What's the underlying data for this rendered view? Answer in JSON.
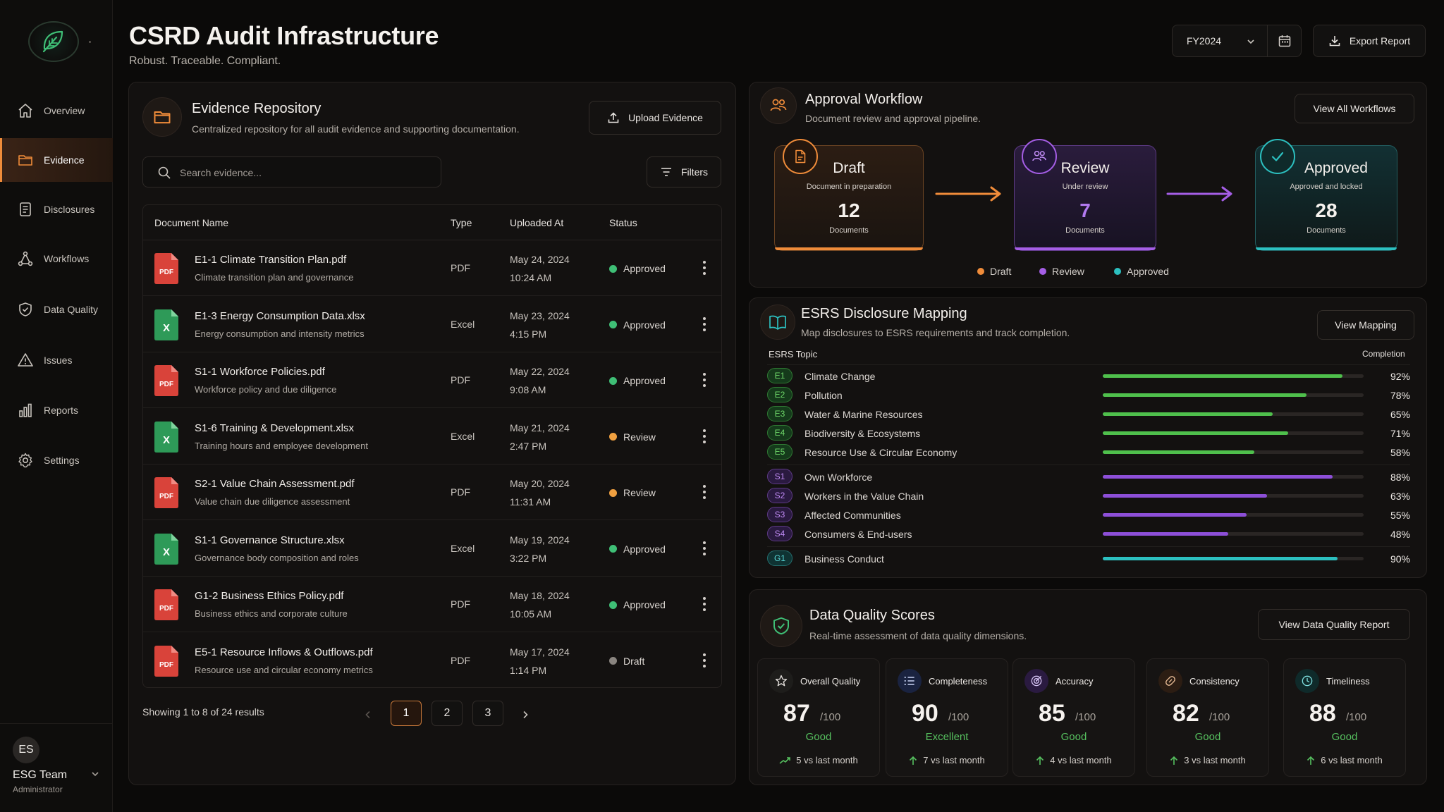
{
  "app": {
    "title": "CSRD Audit Infrastructure",
    "subtitle": "Robust. Traceable. Compliant.",
    "fiscal_year": "FY2024",
    "export_label": "Export Report"
  },
  "sidebar": {
    "items": [
      {
        "label": "Overview",
        "icon": "home-icon"
      },
      {
        "label": "Evidence",
        "icon": "folder-icon",
        "active": true
      },
      {
        "label": "Disclosures",
        "icon": "document-icon"
      },
      {
        "label": "Workflows",
        "icon": "workflow-icon"
      },
      {
        "label": "Data Quality",
        "icon": "shield-check-icon"
      },
      {
        "label": "Issues",
        "icon": "warning-icon"
      },
      {
        "label": "Reports",
        "icon": "bar-chart-icon"
      },
      {
        "label": "Settings",
        "icon": "gear-icon"
      }
    ],
    "user": {
      "initials": "ES",
      "name": "ESG Team",
      "role": "Administrator"
    }
  },
  "evidence": {
    "title": "Evidence Repository",
    "description": "Centralized repository for all audit evidence and supporting documentation.",
    "upload_label": "Upload Evidence",
    "search_placeholder": "Search evidence...",
    "filters_label": "Filters",
    "columns": [
      "Document Name",
      "Type",
      "Uploaded At",
      "Status"
    ],
    "rows": [
      {
        "name": "E1-1 Climate Transition Plan.pdf",
        "desc": "Climate transition plan and governance",
        "type": "PDF",
        "date": "May 24, 2024",
        "time": "10:24 AM",
        "status": "Approved",
        "icon": "pdf-file-icon",
        "badge": "PDF"
      },
      {
        "name": "E1-3 Energy Consumption Data.xlsx",
        "desc": "Energy consumption and intensity metrics",
        "type": "Excel",
        "date": "May 23, 2024",
        "time": "4:15 PM",
        "status": "Approved",
        "icon": "excel-file-icon",
        "badge": "X"
      },
      {
        "name": "S1-1 Workforce Policies.pdf",
        "desc": "Workforce policy and due diligence",
        "type": "PDF",
        "date": "May 22, 2024",
        "time": "9:08 AM",
        "status": "Approved",
        "icon": "pdf-file-icon",
        "badge": "PDF"
      },
      {
        "name": "S1-6 Training & Development.xlsx",
        "desc": "Training hours and employee development",
        "type": "Excel",
        "date": "May 21, 2024",
        "time": "2:47 PM",
        "status": "Review",
        "icon": "excel-file-icon",
        "badge": "X"
      },
      {
        "name": "S2-1 Value Chain Assessment.pdf",
        "desc": "Value chain due diligence assessment",
        "type": "PDF",
        "date": "May 20, 2024",
        "time": "11:31 AM",
        "status": "Review",
        "icon": "pdf-file-icon",
        "badge": "PDF"
      },
      {
        "name": "S1-1 Governance Structure.xlsx",
        "desc": "Governance body composition and roles",
        "type": "Excel",
        "date": "May 19, 2024",
        "time": "3:22 PM",
        "status": "Approved",
        "icon": "excel-file-icon",
        "badge": "X"
      },
      {
        "name": "G1-2 Business Ethics Policy.pdf",
        "desc": "Business ethics and corporate culture",
        "type": "PDF",
        "date": "May 18, 2024",
        "time": "10:05 AM",
        "status": "Approved",
        "icon": "pdf-file-icon",
        "badge": "PDF"
      },
      {
        "name": "E5-1 Resource Inflows & Outflows.pdf",
        "desc": "Resource use and circular economy metrics",
        "type": "PDF",
        "date": "May 17, 2024",
        "time": "1:14 PM",
        "status": "Draft",
        "icon": "pdf-file-icon",
        "badge": "PDF"
      }
    ],
    "showing": "Showing 1 to 8 of 24 results",
    "pages": [
      "1",
      "2",
      "3"
    ],
    "current_page": "1"
  },
  "workflow": {
    "title": "Approval Workflow",
    "description": "Document review and approval pipeline.",
    "view_all_label": "View All Workflows",
    "stages": [
      {
        "title": "Draft",
        "subtitle": "Document in preparation",
        "count": "12",
        "unit": "Documents",
        "color": "#f08c3a",
        "icon": "document-icon"
      },
      {
        "title": "Review",
        "subtitle": "Under review",
        "count": "7",
        "unit": "Documents",
        "color": "#a55ee6",
        "icon": "users-icon"
      },
      {
        "title": "Approved",
        "subtitle": "Approved and locked",
        "count": "28",
        "unit": "Documents",
        "color": "#2cc0c0",
        "icon": "check-icon"
      }
    ],
    "legend": [
      "Draft",
      "Review",
      "Approved"
    ]
  },
  "esrs": {
    "title": "ESRS Disclosure Mapping",
    "description": "Map disclosures to ESRS requirements and track completion.",
    "view_label": "View Mapping",
    "col_topic": "ESRS Topic",
    "col_completion": "Completion",
    "topics": [
      {
        "code": "E1",
        "name": "Climate Change",
        "pct": 92,
        "pct_label": "92%",
        "group": "E"
      },
      {
        "code": "E2",
        "name": "Pollution",
        "pct": 78,
        "pct_label": "78%",
        "group": "E"
      },
      {
        "code": "E3",
        "name": "Water & Marine Resources",
        "pct": 65,
        "pct_label": "65%",
        "group": "E"
      },
      {
        "code": "E4",
        "name": "Biodiversity & Ecosystems",
        "pct": 71,
        "pct_label": "71%",
        "group": "E"
      },
      {
        "code": "E5",
        "name": "Resource Use & Circular Economy",
        "pct": 58,
        "pct_label": "58%",
        "group": "E"
      },
      {
        "code": "S1",
        "name": "Own Workforce",
        "pct": 88,
        "pct_label": "88%",
        "group": "S"
      },
      {
        "code": "S2",
        "name": "Workers in the Value Chain",
        "pct": 63,
        "pct_label": "63%",
        "group": "S"
      },
      {
        "code": "S3",
        "name": "Affected Communities",
        "pct": 55,
        "pct_label": "55%",
        "group": "S"
      },
      {
        "code": "S4",
        "name": "Consumers & End-users",
        "pct": 48,
        "pct_label": "48%",
        "group": "S"
      },
      {
        "code": "G1",
        "name": "Business Conduct",
        "pct": 90,
        "pct_label": "90%",
        "group": "G"
      }
    ]
  },
  "data_quality": {
    "title": "Data Quality Scores",
    "description": "Real-time assessment of data quality dimensions.",
    "view_label": "View Data Quality Report",
    "cards": [
      {
        "label": "Overall Quality",
        "score": "87",
        "max": "/100",
        "rating": "Good",
        "trend": "5 vs last month",
        "icon": "star-icon"
      },
      {
        "label": "Completeness",
        "score": "90",
        "max": "/100",
        "rating": "Excellent",
        "trend": "7 vs last month",
        "icon": "list-icon"
      },
      {
        "label": "Accuracy",
        "score": "85",
        "max": "/100",
        "rating": "Good",
        "trend": "4 vs last month",
        "icon": "target-icon"
      },
      {
        "label": "Consistency",
        "score": "82",
        "max": "/100",
        "rating": "Good",
        "trend": "3 vs last month",
        "icon": "link-icon"
      },
      {
        "label": "Timeliness",
        "score": "88",
        "max": "/100",
        "rating": "Good",
        "trend": "6 vs last month",
        "icon": "clock-icon"
      }
    ]
  },
  "colors": {
    "accent": "#f08c3a",
    "approved": "#3fbf76",
    "review": "#f0a040",
    "draft": "#8a8580",
    "esrs_e": "#4fc04c",
    "esrs_s": "#8d4fd8",
    "esrs_g": "#2cc0c0"
  }
}
